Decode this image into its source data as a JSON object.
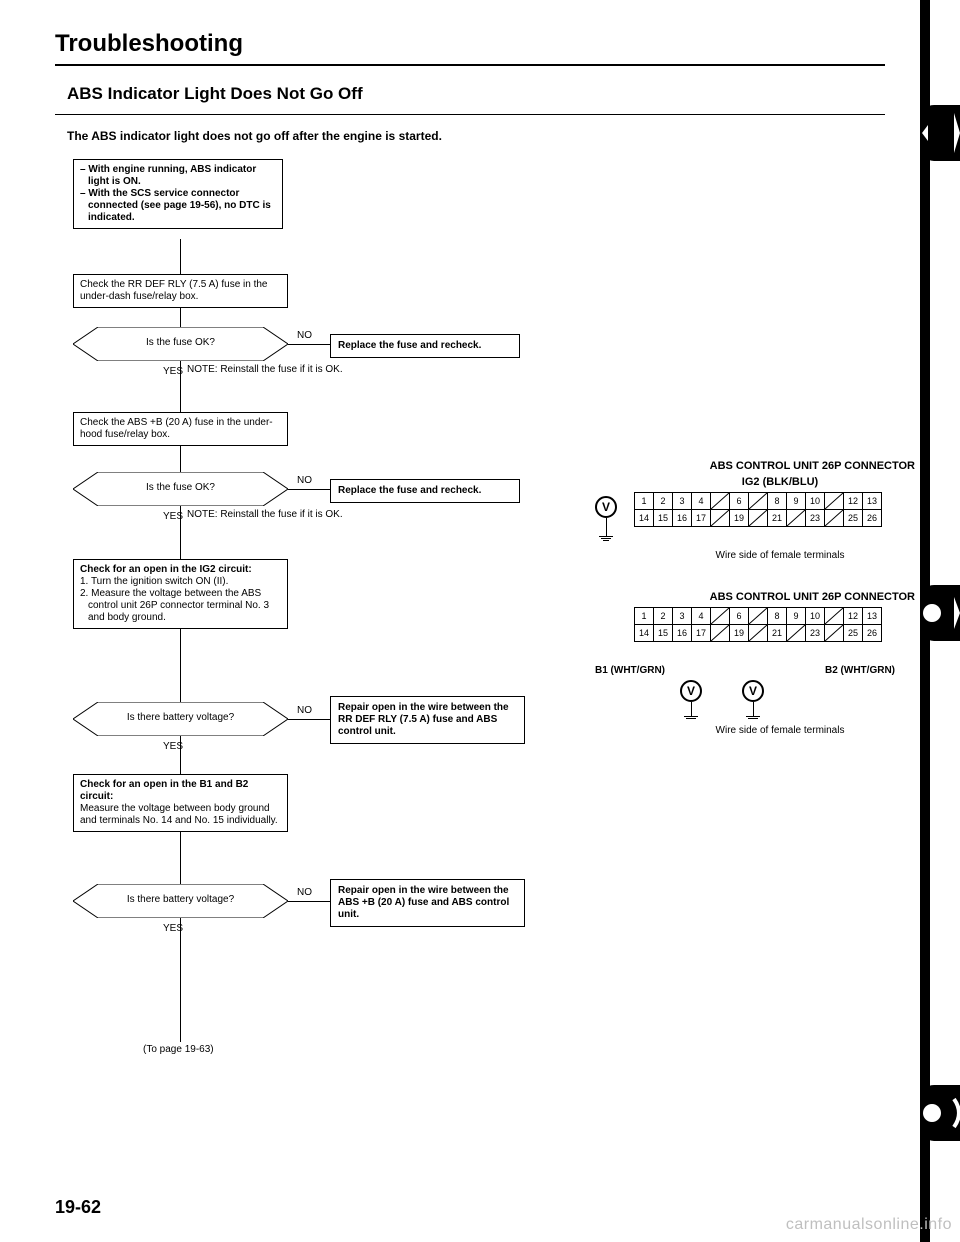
{
  "title": "Troubleshooting",
  "section_title": "ABS Indicator Light Does Not Go Off",
  "intro": "The ABS indicator light does not go off after the engine is started.",
  "start_box": {
    "lines": [
      "– With engine running, ABS indicator light is ON.",
      "– With the SCS service connector connected (see page 19-56), no DTC is indicated."
    ]
  },
  "proc1": "Check the RR DEF RLY (7.5 A) fuse in the under-dash fuse/relay box.",
  "dec1": "Is the fuse OK?",
  "note1": "NOTE: Reinstall the fuse if it is OK.",
  "act1": "Replace the fuse and recheck.",
  "proc2": "Check the ABS +B (20 A) fuse in the under-hood fuse/relay box.",
  "dec2": "Is the fuse OK?",
  "note2": "NOTE: Reinstall the fuse if it is OK.",
  "act2": "Replace the fuse and recheck.",
  "proc3_title": "Check for an open in the IG2 circuit:",
  "proc3_l1": "1. Turn the ignition switch ON (II).",
  "proc3_l2": "2. Measure the voltage between the ABS control unit 26P connector terminal No. 3 and body ground.",
  "dec3": "Is there battery voltage?",
  "act3": "Repair open in the wire between the RR DEF RLY (7.5 A) fuse and ABS control unit.",
  "proc4_title": "Check for an open in the B1 and B2 circuit:",
  "proc4_body": "Measure the voltage between body ground and terminals No. 14 and No. 15 individually.",
  "dec4": "Is there battery voltage?",
  "act4": "Repair open in the wire between the ABS +B (20 A) fuse and ABS control unit.",
  "to_page": "(To page 19-63)",
  "page_num": "19-62",
  "watermark": "carmanualsonline.info",
  "yes": "YES",
  "no": "NO",
  "conn1": {
    "title": "ABS CONTROL UNIT 26P CONNECTOR",
    "sub": "IG2 (BLK/BLU)",
    "caption": "Wire side of female terminals",
    "row1": [
      "1",
      "2",
      "3",
      "4",
      "",
      "6",
      "",
      "8",
      "9",
      "10",
      "",
      "12",
      "13"
    ],
    "row2": [
      "14",
      "15",
      "16",
      "17",
      "",
      "19",
      "",
      "21",
      "",
      "23",
      "",
      "25",
      "26"
    ]
  },
  "conn2": {
    "title": "ABS CONTROL UNIT 26P CONNECTOR",
    "b1": "B1 (WHT/GRN)",
    "b2": "B2 (WHT/GRN)",
    "caption": "Wire side of female terminals",
    "row1": [
      "1",
      "2",
      "3",
      "4",
      "",
      "6",
      "",
      "8",
      "9",
      "10",
      "",
      "12",
      "13"
    ],
    "row2": [
      "14",
      "15",
      "16",
      "17",
      "",
      "19",
      "",
      "21",
      "",
      "23",
      "",
      "25",
      "26"
    ]
  }
}
